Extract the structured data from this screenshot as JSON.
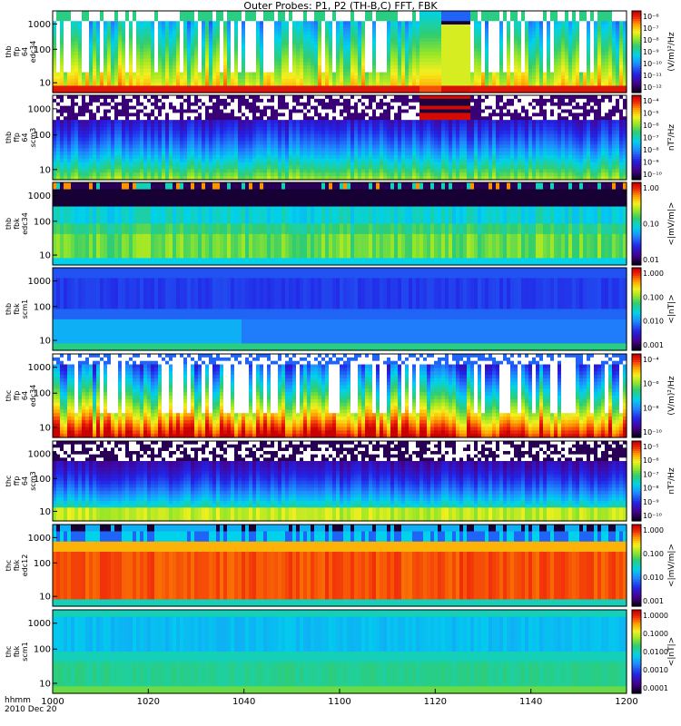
{
  "title": "Outer Probes: P1, P2 (TH-B,C) FFT, FBK",
  "footer": {
    "label": "hhmm",
    "date": "2010 Dec 20"
  },
  "chart_data": {
    "type": "heatmap",
    "x_axis": {
      "ticks": [
        "1000",
        "1020",
        "1040",
        "1100",
        "1120",
        "1140",
        "1200"
      ]
    },
    "panels": [
      {
        "labels": [
          "thb",
          "ffp",
          "64",
          "edc34"
        ],
        "y_ticks": [
          "1000",
          "100",
          "10"
        ],
        "colorbar_ticks": [
          "10⁻⁶",
          "10⁻⁷",
          "10⁻⁸",
          "10⁻⁹",
          "10⁻¹⁰",
          "10⁻¹¹",
          "10⁻¹²"
        ],
        "units": "(V/m)²/Hz",
        "style": "ffp_e"
      },
      {
        "labels": [
          "thb",
          "ffp",
          "64",
          "scm3"
        ],
        "y_ticks": [
          "1000",
          "100",
          "10"
        ],
        "colorbar_ticks": [
          "10⁻⁴",
          "10⁻⁵",
          "10⁻⁶",
          "10⁻⁷",
          "10⁻⁸",
          "10⁻⁹",
          "10⁻¹⁰"
        ],
        "units": "nT²/Hz",
        "style": "ffp_b"
      },
      {
        "labels": [
          "thb",
          "fbk",
          "edc34"
        ],
        "y_ticks": [
          "1000",
          "100",
          "10"
        ],
        "colorbar_ticks": [
          "1.00",
          "0.10",
          "0.01"
        ],
        "units": "<|mV/m|>",
        "style": "fbk_e_b"
      },
      {
        "labels": [
          "thb",
          "fbk",
          "scm1"
        ],
        "y_ticks": [
          "1000",
          "100",
          "10"
        ],
        "colorbar_ticks": [
          "1.000",
          "0.100",
          "0.010",
          "0.001"
        ],
        "units": "<|nT|>",
        "style": "fbk_b_b"
      },
      {
        "labels": [
          "thc",
          "ffp",
          "64",
          "edc34"
        ],
        "y_ticks": [
          "1000",
          "100",
          "10"
        ],
        "colorbar_ticks": [
          "10⁻⁴",
          "10⁻⁶",
          "10⁻⁸",
          "10⁻¹⁰"
        ],
        "units": "(V/m)²/Hz",
        "style": "ffp_e_c"
      },
      {
        "labels": [
          "thc",
          "ffp",
          "64",
          "scm3"
        ],
        "y_ticks": [
          "1000",
          "100",
          "10"
        ],
        "colorbar_ticks": [
          "10⁻⁵",
          "10⁻⁶",
          "10⁻⁷",
          "10⁻⁸",
          "10⁻⁹",
          "10⁻¹⁰"
        ],
        "units": "nT²/Hz",
        "style": "ffp_b_c"
      },
      {
        "labels": [
          "thc",
          "fbk",
          "edc12"
        ],
        "y_ticks": [
          "1000",
          "100",
          "10"
        ],
        "colorbar_ticks": [
          "1.000",
          "0.100",
          "0.010",
          "0.001"
        ],
        "units": "<|mV/m|>",
        "style": "fbk_e_c"
      },
      {
        "labels": [
          "thc",
          "fbk",
          "scm1"
        ],
        "y_ticks": [
          "1000",
          "100",
          "10"
        ],
        "colorbar_ticks": [
          "1.0000",
          "0.1000",
          "0.0100",
          "0.0010",
          "0.0001"
        ],
        "units": "<|nT|>",
        "style": "fbk_b_c"
      }
    ]
  }
}
